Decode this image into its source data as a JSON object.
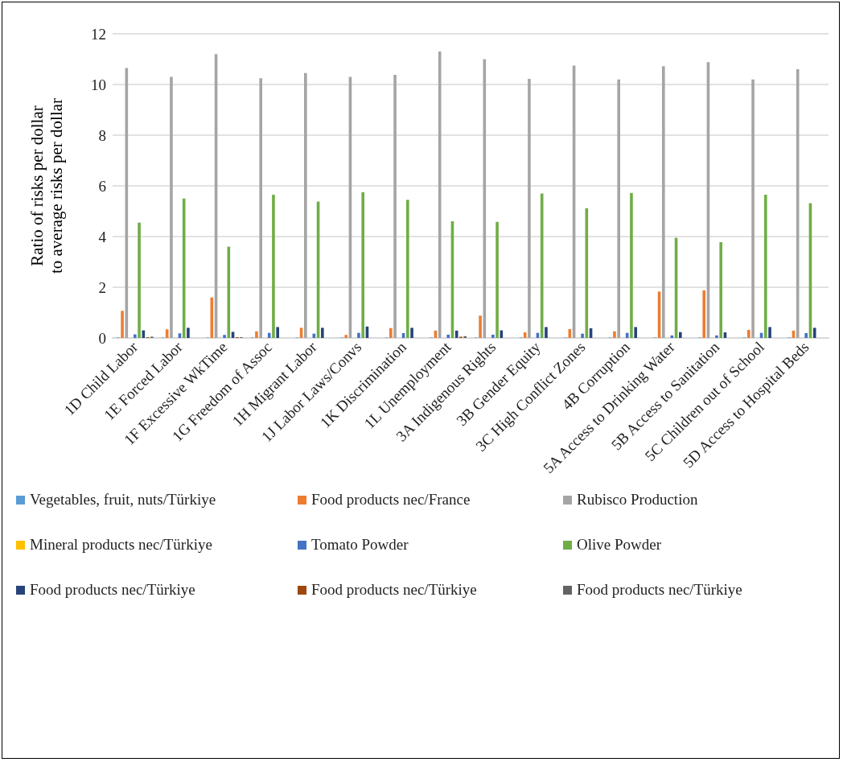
{
  "chart_data": {
    "type": "bar",
    "ylabel": "Ratio of risks per dollar\nto average risks per dollar",
    "categories": [
      "1D Child Labor",
      "1E Forced Labor",
      "1F Excessive WkTime",
      "1G Freedom of Assoc",
      "1H Migrant Labor",
      "1J Labor Laws/Convs",
      "1K Discrimination",
      "1L Unemployment",
      "3A Indigenous Rights",
      "3B Gender Equity",
      "3C High Conflict Zones",
      "4B Corruption",
      "5A Access to Drinking Water",
      "5B Access to Sanitation",
      "5C Children out of School",
      "5D Access to Hospital Beds"
    ],
    "series": [
      {
        "name": "Vegetables, fruit, nuts/Türkiye",
        "color": "#5b9bd5",
        "values": [
          0.02,
          0.02,
          0.02,
          0.02,
          0.02,
          0.02,
          0.02,
          0.02,
          0.02,
          0.02,
          0.02,
          0.02,
          0.02,
          0.02,
          0.02,
          0.02
        ]
      },
      {
        "name": "Food products nec/France",
        "color": "#ed7d31",
        "values": [
          1.07,
          0.34,
          1.6,
          0.26,
          0.4,
          0.12,
          0.39,
          0.29,
          0.88,
          0.22,
          0.35,
          0.26,
          1.83,
          1.88,
          0.32,
          0.29
        ]
      },
      {
        "name": "Rubisco Production",
        "color": "#a5a5a5",
        "values": [
          10.65,
          10.3,
          11.2,
          10.25,
          10.45,
          10.3,
          10.38,
          11.3,
          11.0,
          10.22,
          10.75,
          10.2,
          10.72,
          10.88,
          10.2,
          10.6
        ]
      },
      {
        "name": "Mineral products nec/Türkiye",
        "color": "#ffc000",
        "values": [
          null,
          null,
          null,
          null,
          null,
          null,
          null,
          null,
          null,
          null,
          null,
          null,
          null,
          null,
          null,
          null
        ]
      },
      {
        "name": "Tomato Powder",
        "color": "#4472c4",
        "values": [
          0.14,
          0.18,
          0.12,
          0.2,
          0.17,
          0.2,
          0.19,
          0.13,
          0.13,
          0.2,
          0.17,
          0.2,
          0.1,
          0.1,
          0.2,
          0.19
        ]
      },
      {
        "name": "Olive Powder",
        "color": "#70ad47",
        "values": [
          4.55,
          5.5,
          3.6,
          5.65,
          5.38,
          5.75,
          5.45,
          4.6,
          4.58,
          5.7,
          5.12,
          5.72,
          3.95,
          3.78,
          5.65,
          5.32
        ]
      },
      {
        "name": "Food products nec/Türkiye",
        "color": "#264478",
        "values": [
          0.3,
          0.4,
          0.24,
          0.43,
          0.4,
          0.45,
          0.4,
          0.29,
          0.3,
          0.43,
          0.38,
          0.43,
          0.23,
          0.22,
          0.43,
          0.4
        ]
      },
      {
        "name": "Food products nec/Türkiye",
        "color": "#9e480e",
        "values": [
          0.03,
          null,
          0.03,
          null,
          null,
          null,
          null,
          0.05,
          null,
          null,
          null,
          null,
          null,
          null,
          null,
          null
        ]
      },
      {
        "name": "Food products nec/Türkiye",
        "color": "#636363",
        "values": [
          0.05,
          null,
          0.03,
          null,
          null,
          null,
          null,
          0.07,
          null,
          null,
          null,
          null,
          null,
          null,
          null,
          null
        ]
      }
    ],
    "ylim": [
      0,
      12
    ],
    "yticks": [
      0,
      2,
      4,
      6,
      8,
      10,
      12
    ],
    "grid": "y",
    "legend": "bottom"
  }
}
